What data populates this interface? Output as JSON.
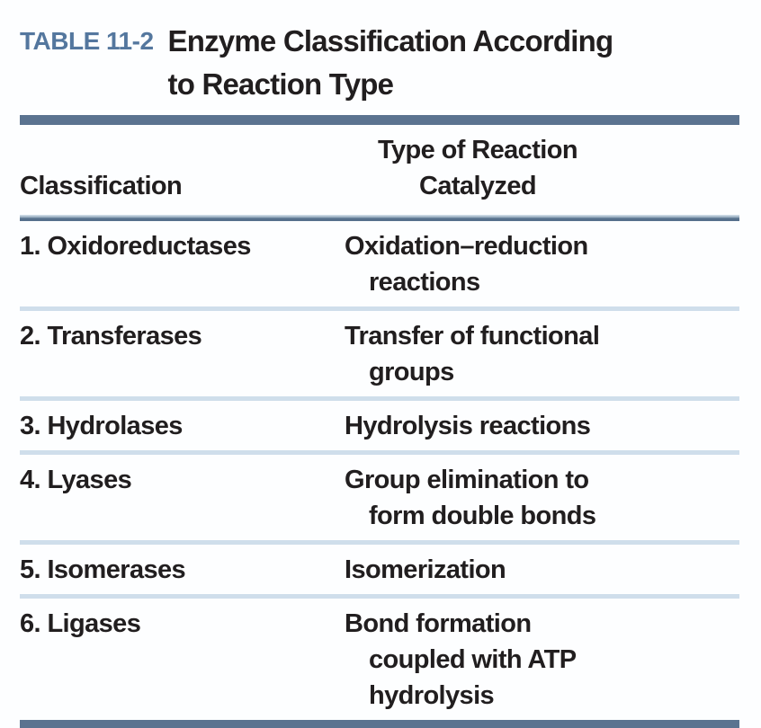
{
  "figure": {
    "label": "TABLE 11-2",
    "title_lines": [
      "Enzyme Classification According",
      "to Reaction Type"
    ]
  },
  "table": {
    "col1_header": "Classification",
    "col2_header_lines": [
      "Type of Reaction",
      "Catalyzed"
    ],
    "rows": [
      {
        "classification": "1. Oxidoreductases",
        "reaction_lines": [
          "Oxidation–reduction",
          "reactions"
        ]
      },
      {
        "classification": "2. Transferases",
        "reaction_lines": [
          "Transfer of functional",
          "groups"
        ]
      },
      {
        "classification": "3. Hydrolases",
        "reaction_lines": [
          "Hydrolysis reactions"
        ]
      },
      {
        "classification": "4. Lyases",
        "reaction_lines": [
          "Group elimination to",
          "form double bonds"
        ]
      },
      {
        "classification": "5. Isomerases",
        "reaction_lines": [
          "Isomerization"
        ]
      },
      {
        "classification": "6. Ligases",
        "reaction_lines": [
          "Bond formation",
          "coupled with ATP",
          "hydrolysis"
        ]
      }
    ]
  },
  "colors": {
    "accent_bar": "#5b7390",
    "row_divider": "#cfdeeb",
    "label_blue": "#54779e",
    "text": "#211e1f",
    "background": "#fdfeff"
  }
}
